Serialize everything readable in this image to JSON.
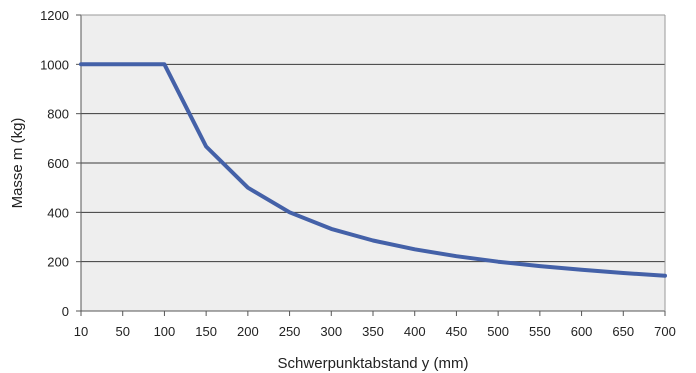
{
  "chart_data": {
    "type": "line",
    "title": "",
    "xlabel": "Schwerpunktabstand y (mm)",
    "ylabel": "Masse m (kg)",
    "x_ticks": [
      "10",
      "50",
      "100",
      "150",
      "200",
      "250",
      "300",
      "350",
      "400",
      "450",
      "500",
      "550",
      "600",
      "650",
      "700"
    ],
    "y_ticks": [
      "0",
      "200",
      "400",
      "600",
      "800",
      "1000",
      "1200"
    ],
    "ylim": [
      0,
      1200
    ],
    "grid": true,
    "legend": "none",
    "series": [
      {
        "x": [
          "10",
          "50",
          "100",
          "150",
          "200",
          "250",
          "300",
          "350",
          "400",
          "450",
          "500",
          "550",
          "600",
          "650",
          "700"
        ],
        "values": [
          1000,
          1000,
          1000,
          667,
          500,
          400,
          333,
          286,
          250,
          222,
          200,
          182,
          167,
          154,
          143
        ],
        "color": "#4461A8"
      }
    ],
    "plot_background": "#EEEEEE"
  }
}
